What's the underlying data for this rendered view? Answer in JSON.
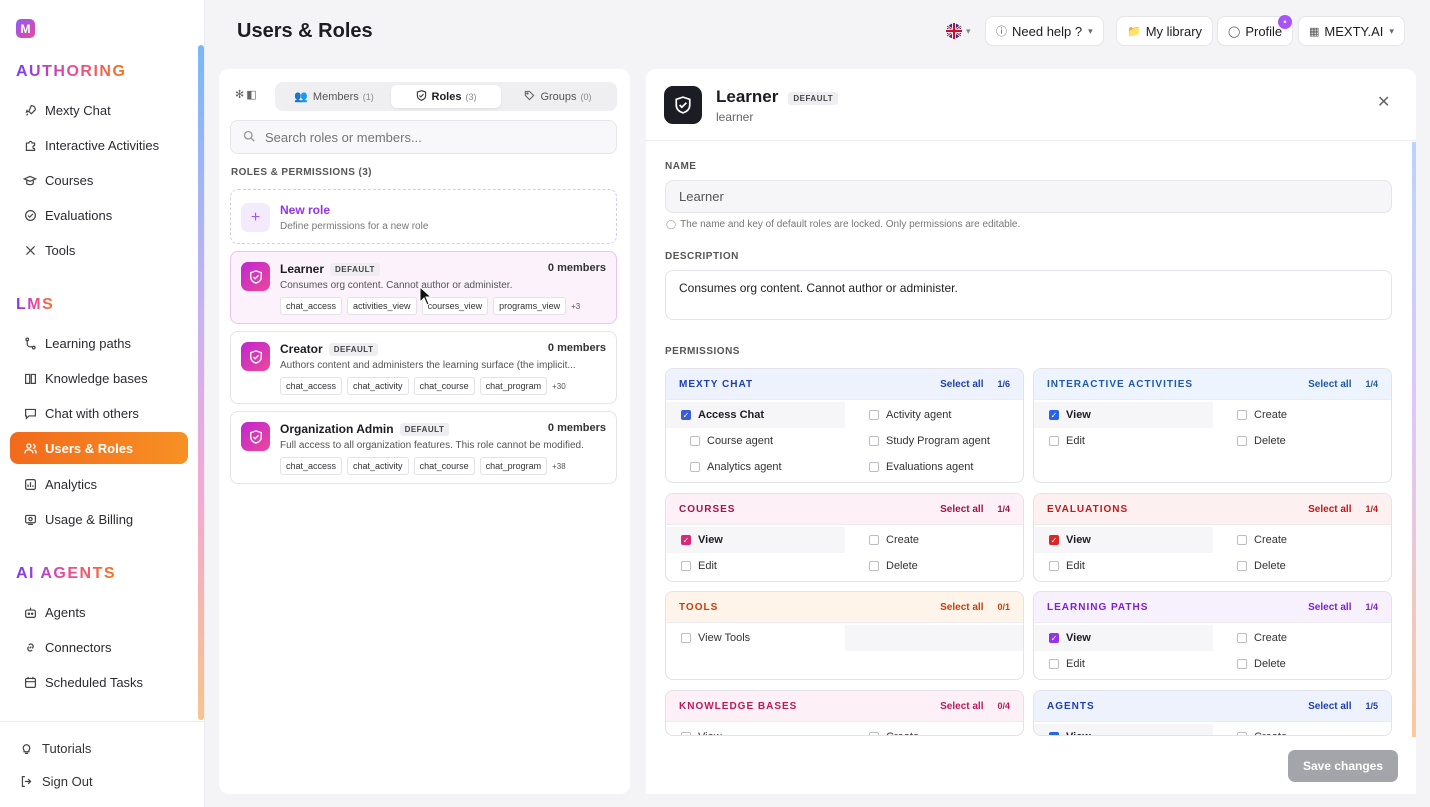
{
  "sidebar": {
    "logo_letter": "M",
    "sections": [
      {
        "title": "AUTHORING",
        "items": [
          {
            "label": "Mexty Chat",
            "icon": "rocket-icon"
          },
          {
            "label": "Interactive Activities",
            "icon": "puzzle-icon"
          },
          {
            "label": "Courses",
            "icon": "graduation-cap-icon"
          },
          {
            "label": "Evaluations",
            "icon": "clipboard-check-icon"
          },
          {
            "label": "Tools",
            "icon": "wrench-icon"
          }
        ]
      },
      {
        "title": "LMS",
        "items": [
          {
            "label": "Learning paths",
            "icon": "route-icon"
          },
          {
            "label": "Knowledge bases",
            "icon": "book-icon"
          },
          {
            "label": "Chat with others",
            "icon": "message-icon"
          },
          {
            "label": "Users & Roles",
            "icon": "users-icon",
            "active": true
          },
          {
            "label": "Analytics",
            "icon": "bar-chart-icon"
          },
          {
            "label": "Usage & Billing",
            "icon": "billing-icon"
          }
        ]
      },
      {
        "title": "AI AGENTS",
        "items": [
          {
            "label": "Agents",
            "icon": "bot-icon"
          },
          {
            "label": "Connectors",
            "icon": "link-icon"
          },
          {
            "label": "Scheduled Tasks",
            "icon": "calendar-icon"
          }
        ]
      }
    ],
    "footer": {
      "tutorials": "Tutorials",
      "sign_out": "Sign Out"
    }
  },
  "header": {
    "title": "Users & Roles",
    "help": "Need help ?",
    "library": "My library",
    "profile": "Profile",
    "org": "MEXTY.AI"
  },
  "left": {
    "tabs": [
      {
        "label": "Members",
        "count": "(1)",
        "icon": "users-icon"
      },
      {
        "label": "Roles",
        "count": "(3)",
        "icon": "shield-icon",
        "active": true
      },
      {
        "label": "Groups",
        "count": "(0)",
        "icon": "tag-icon"
      }
    ],
    "search_placeholder": "Search roles or members...",
    "section_title": "ROLES & PERMISSIONS (3)",
    "new_role": {
      "title": "New role",
      "subtitle": "Define permissions for a new role"
    },
    "roles": [
      {
        "name": "Learner",
        "badge": "DEFAULT",
        "members": "0 members",
        "desc": "Consumes org content. Cannot author or administer.",
        "chips": [
          "chat_access",
          "activities_view",
          "courses_view",
          "programs_view"
        ],
        "more": "+3",
        "selected": true
      },
      {
        "name": "Creator",
        "badge": "DEFAULT",
        "members": "0 members",
        "desc": "Authors content and administers the learning surface (the implicit...",
        "chips": [
          "chat_access",
          "chat_activity",
          "chat_course",
          "chat_program"
        ],
        "more": "+30"
      },
      {
        "name": "Organization Admin",
        "badge": "DEFAULT",
        "members": "0 members",
        "desc": "Full access to all organization features. This role cannot be modified.",
        "chips": [
          "chat_access",
          "chat_activity",
          "chat_course",
          "chat_program"
        ],
        "more": "+38"
      }
    ]
  },
  "detail": {
    "title": "Learner",
    "badge": "DEFAULT",
    "key": "learner",
    "name_label": "NAME",
    "name_value": "Learner",
    "hint": "The name and key of default roles are locked. Only permissions are editable.",
    "description_label": "DESCRIPTION",
    "description_value": "Consumes org content. Cannot author or administer.",
    "permissions_label": "PERMISSIONS",
    "select_all": "Select all",
    "groups": [
      {
        "name": "MEXTY CHAT",
        "count": "1/6",
        "color": "#1e40af",
        "head_bg": "#eef2fd",
        "check_color": "#3b5bdb",
        "perms": [
          {
            "label": "Access Chat",
            "checked": true
          },
          {
            "label": "Activity agent",
            "checked": false
          },
          {
            "label": "Course agent",
            "checked": false
          },
          {
            "label": "Study Program agent",
            "checked": false
          },
          {
            "label": "Analytics agent",
            "checked": false
          },
          {
            "label": "Evaluations agent",
            "checked": false
          }
        ]
      },
      {
        "name": "INTERACTIVE ACTIVITIES",
        "count": "1/4",
        "color": "#1e5aa8",
        "head_bg": "#eef4fd",
        "check_color": "#2563eb",
        "perms": [
          {
            "label": "View",
            "checked": true
          },
          {
            "label": "Create",
            "checked": false
          },
          {
            "label": "Edit",
            "checked": false
          },
          {
            "label": "Delete",
            "checked": false
          }
        ]
      },
      {
        "name": "COURSES",
        "count": "1/4",
        "color": "#9d174d",
        "head_bg": "#fdf0f6",
        "check_color": "#db2777",
        "perms": [
          {
            "label": "View",
            "checked": true
          },
          {
            "label": "Create",
            "checked": false
          },
          {
            "label": "Edit",
            "checked": false
          },
          {
            "label": "Delete",
            "checked": false
          }
        ]
      },
      {
        "name": "EVALUATIONS",
        "count": "1/4",
        "color": "#b91c1c",
        "head_bg": "#fdf0f0",
        "check_color": "#dc2626",
        "perms": [
          {
            "label": "View",
            "checked": true
          },
          {
            "label": "Create",
            "checked": false
          },
          {
            "label": "Edit",
            "checked": false
          },
          {
            "label": "Delete",
            "checked": false
          }
        ]
      },
      {
        "name": "TOOLS",
        "count": "0/1",
        "color": "#c2410c",
        "head_bg": "#fef4ea",
        "check_color": "#ea580c",
        "perms": [
          {
            "label": "View Tools",
            "checked": false
          }
        ]
      },
      {
        "name": "LEARNING PATHS",
        "count": "1/4",
        "color": "#7e22ce",
        "head_bg": "#f7f0fd",
        "check_color": "#9333ea",
        "perms": [
          {
            "label": "View",
            "checked": true
          },
          {
            "label": "Create",
            "checked": false
          },
          {
            "label": "Edit",
            "checked": false
          },
          {
            "label": "Delete",
            "checked": false
          }
        ]
      },
      {
        "name": "KNOWLEDGE BASES",
        "count": "0/4",
        "color": "#be185d",
        "head_bg": "#fdf0f6",
        "check_color": "#db2777",
        "perms": [
          {
            "label": "View",
            "checked": false
          },
          {
            "label": "Create",
            "checked": false
          }
        ]
      },
      {
        "name": "AGENTS",
        "count": "1/5",
        "color": "#1e40af",
        "head_bg": "#eef2fd",
        "check_color": "#2563eb",
        "perms": [
          {
            "label": "View",
            "checked": true
          },
          {
            "label": "Create",
            "checked": false
          }
        ]
      }
    ],
    "save": "Save changes"
  }
}
